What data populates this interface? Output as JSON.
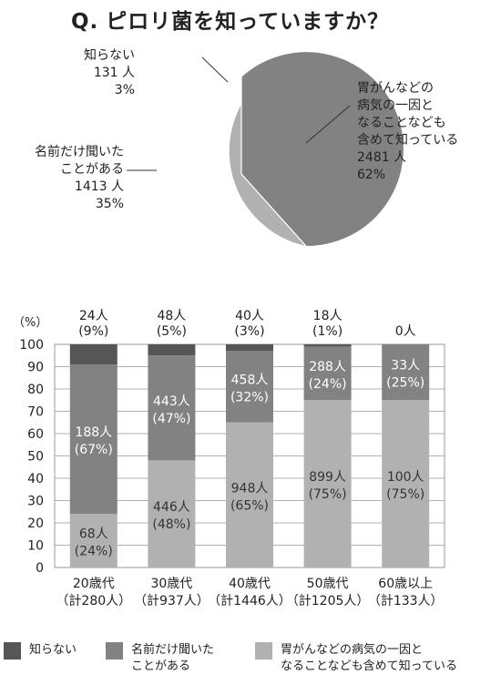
{
  "title": {
    "q": "Q.",
    "text": "ピロリ菌を知っていますか？"
  },
  "colors": {
    "dark": "#565656",
    "mid": "#828282",
    "light": "#b1b1b1"
  },
  "pie": {
    "slices": [
      {
        "key": "unknown",
        "lines": [
          "知らない",
          "131 人",
          "3%"
        ],
        "value": 131,
        "percent": 3,
        "color": "#565656"
      },
      {
        "key": "heard",
        "lines": [
          "名前だけ聞いた",
          "ことがある",
          "1413 人",
          "35%"
        ],
        "value": 1413,
        "percent": 35,
        "color": "#b1b1b1"
      },
      {
        "key": "knows",
        "lines": [
          "胃がんなどの",
          "病気の一因と",
          "なることなども",
          "含めて知っている",
          "2481 人",
          "62%"
        ],
        "value": 2481,
        "percent": 62,
        "color": "#828282"
      }
    ]
  },
  "chart_data": {
    "type": "bar",
    "stacked": true,
    "ylabel": "（%）",
    "ylim": [
      0,
      100
    ],
    "yticks": [
      "0",
      "10",
      "20",
      "30",
      "40",
      "50",
      "60",
      "70",
      "80",
      "90",
      "100"
    ],
    "categories": [
      [
        "20歳代",
        "（計280人）"
      ],
      [
        "30歳代",
        "（計937人）"
      ],
      [
        "40歳代",
        "（計1446人）"
      ],
      [
        "50歳代",
        "（計1205人）"
      ],
      [
        "60歳以上",
        "（計133人）"
      ]
    ],
    "series": [
      {
        "name": "胃がんなどの病気の一因となることなども含めて知っている",
        "color": "#b1b1b1",
        "values": [
          24,
          48,
          65,
          75,
          75
        ],
        "labels": [
          [
            "68人",
            "(24%)"
          ],
          [
            "446人",
            "(48%)"
          ],
          [
            "948人",
            "(65%)"
          ],
          [
            "899人",
            "(75%)"
          ],
          [
            "100人",
            "(75%)"
          ]
        ]
      },
      {
        "name": "名前だけ聞いたことがある",
        "color": "#828282",
        "values": [
          67,
          47,
          32,
          24,
          25
        ],
        "labels": [
          [
            "188人",
            "(67%)"
          ],
          [
            "443人",
            "(47%)"
          ],
          [
            "458人",
            "(32%)"
          ],
          [
            "288人",
            "(24%)"
          ],
          [
            "33人",
            "(25%)"
          ]
        ]
      },
      {
        "name": "知らない",
        "color": "#565656",
        "values": [
          9,
          5,
          3,
          1,
          0
        ],
        "labels": [
          [
            "24人",
            "(9%)"
          ],
          [
            "48人",
            "(5%)"
          ],
          [
            "40人",
            "(3%)"
          ],
          [
            "18人",
            "(1%)"
          ],
          [
            "0人",
            ""
          ]
        ]
      }
    ]
  },
  "legend": [
    {
      "lines": [
        "知らない"
      ],
      "color": "#565656"
    },
    {
      "lines": [
        "名前だけ聞いた",
        "ことがある"
      ],
      "color": "#828282"
    },
    {
      "lines": [
        "胃がんなどの病気の一因と",
        "なることなども含めて知っている"
      ],
      "color": "#b1b1b1"
    }
  ]
}
